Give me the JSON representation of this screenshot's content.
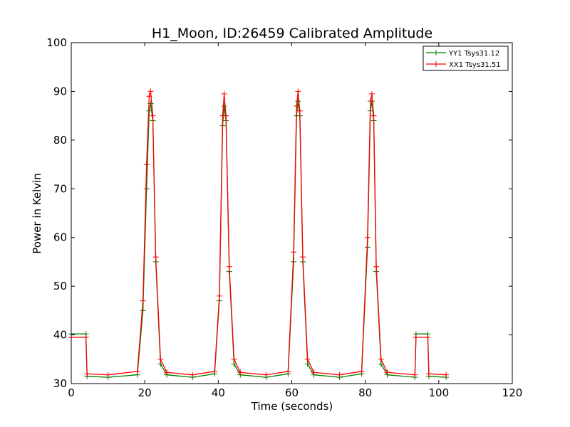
{
  "chart_data": {
    "type": "line",
    "title": "H1_Moon, ID:26459 Calibrated Amplitude",
    "xlabel": "Time (seconds)",
    "ylabel": "Power in Kelvin",
    "xlim": [
      0,
      120
    ],
    "ylim": [
      30,
      100
    ],
    "xticks": [
      0,
      20,
      40,
      60,
      80,
      100,
      120
    ],
    "yticks": [
      30,
      40,
      50,
      60,
      70,
      80,
      90,
      100
    ],
    "grid": false,
    "legend_position": "top-right",
    "markers": "+",
    "series": [
      {
        "name": "YY1 Tsys31.12",
        "color": "#008000",
        "x": [
          0,
          4,
          4.3,
          10,
          18,
          19.5,
          20.5,
          21.2,
          21.6,
          22.2,
          23,
          24.3,
          26,
          33,
          39,
          40.3,
          41.2,
          41.6,
          42.1,
          43,
          44.3,
          46,
          53,
          59,
          60.5,
          61.3,
          61.7,
          62.2,
          63,
          64.3,
          66,
          73,
          79,
          80.6,
          81.4,
          81.8,
          82.3,
          83,
          84.3,
          86,
          93.5,
          93.8,
          97,
          97.3,
          102
        ],
        "y": [
          40.2,
          40.2,
          31.5,
          31.3,
          31.8,
          45,
          70,
          86,
          87.5,
          84,
          55,
          34,
          31.8,
          31.3,
          32,
          47,
          83,
          87,
          84,
          53,
          34,
          31.8,
          31.3,
          32,
          55,
          85,
          88,
          85,
          55,
          34,
          31.8,
          31.3,
          32,
          58,
          86,
          88,
          84,
          53,
          34,
          31.8,
          31.3,
          40.2,
          40.2,
          31.5,
          31.3
        ]
      },
      {
        "name": "XX1 Tsys31.51",
        "color": "#ff0000",
        "x": [
          0,
          4,
          4.3,
          10,
          18,
          19.5,
          20.5,
          21.2,
          21.6,
          22.2,
          23,
          24.3,
          26,
          33,
          39,
          40.3,
          41.2,
          41.6,
          42.1,
          43,
          44.3,
          46,
          53,
          59,
          60.5,
          61.3,
          61.7,
          62.2,
          63,
          64.3,
          66,
          73,
          79,
          80.6,
          81.4,
          81.8,
          82.3,
          83,
          84.3,
          86,
          93.5,
          93.8,
          97,
          97.3,
          102
        ],
        "y": [
          39.5,
          39.5,
          32,
          31.8,
          32.5,
          47,
          75,
          89,
          90,
          85,
          56,
          35,
          32.3,
          31.8,
          32.5,
          48,
          85,
          89.5,
          85,
          54,
          35,
          32.3,
          31.8,
          32.5,
          57,
          87,
          90,
          86,
          56,
          35,
          32.3,
          31.8,
          32.5,
          60,
          88,
          89.5,
          85,
          54,
          35,
          32.3,
          31.8,
          39.5,
          39.5,
          32,
          31.8
        ]
      }
    ]
  }
}
